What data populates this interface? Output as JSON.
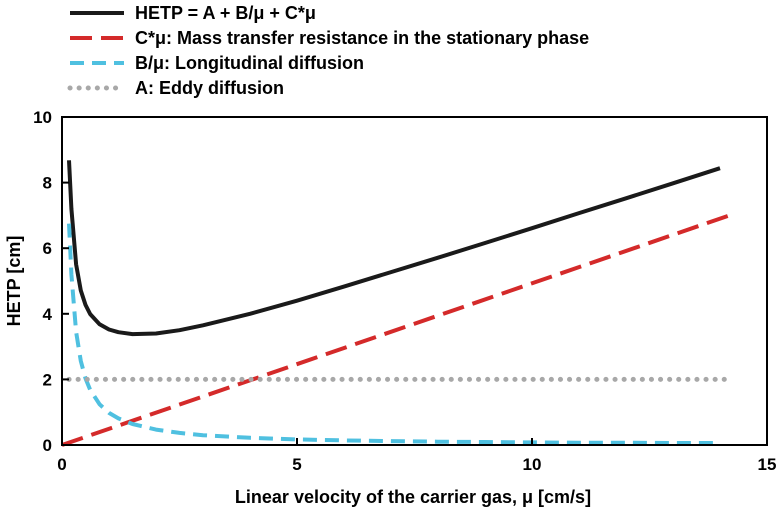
{
  "chart_data": {
    "type": "line",
    "title": "",
    "xlabel": "Linear velocity of the carrier gas, μ [cm/s]",
    "ylabel": "HETP [cm]",
    "xlim": [
      0,
      15
    ],
    "ylim": [
      0,
      10
    ],
    "xticks": [
      0,
      5,
      10,
      15
    ],
    "yticks": [
      0,
      2,
      4,
      6,
      8,
      10
    ],
    "grid": false,
    "legend_position": "top-left, above plot",
    "series": [
      {
        "name": "HETP = A + B/μ + C*μ",
        "color": "#1a1a1a",
        "style": "solid",
        "x": [
          0.15,
          0.2,
          0.3,
          0.4,
          0.5,
          0.6,
          0.8,
          1.0,
          1.2,
          1.5,
          2.0,
          2.5,
          3.0,
          4.0,
          5.0,
          6.0,
          7.0,
          8.0,
          9.0,
          10.0,
          11.0,
          12.0,
          13.0,
          14.0
        ],
        "y": [
          8.68,
          7.2,
          5.51,
          4.71,
          4.27,
          3.99,
          3.68,
          3.52,
          3.44,
          3.38,
          3.4,
          3.5,
          3.65,
          4.0,
          4.4,
          4.83,
          5.27,
          5.71,
          6.16,
          6.61,
          7.07,
          7.52,
          7.98,
          8.44
        ]
      },
      {
        "name": "C*μ: Mass transfer resistance in the stationary phase",
        "color": "#d42a2a",
        "style": "dashed",
        "x": [
          0,
          14.2
        ],
        "y": [
          0,
          7.0
        ]
      },
      {
        "name": "B/μ: Longitudinal diffusion",
        "color": "#4fc0e0",
        "style": "dashed",
        "x": [
          0.15,
          0.2,
          0.3,
          0.4,
          0.5,
          0.6,
          0.8,
          1.0,
          1.2,
          1.5,
          2.0,
          2.5,
          3.0,
          4.0,
          5.0,
          6.0,
          7.0,
          8.0,
          9.0,
          10.0,
          11.0,
          12.0,
          13.0,
          14.0
        ],
        "y": [
          6.75,
          5.2,
          3.45,
          2.56,
          2.03,
          1.68,
          1.24,
          0.98,
          0.81,
          0.64,
          0.47,
          0.37,
          0.3,
          0.22,
          0.17,
          0.14,
          0.12,
          0.1,
          0.09,
          0.08,
          0.07,
          0.07,
          0.06,
          0.06
        ]
      },
      {
        "name": "A: Eddy diffusion",
        "color": "#a8a8a8",
        "style": "dotted",
        "x": [
          0.15,
          14.2
        ],
        "y": [
          2.0,
          2.0
        ]
      }
    ]
  }
}
